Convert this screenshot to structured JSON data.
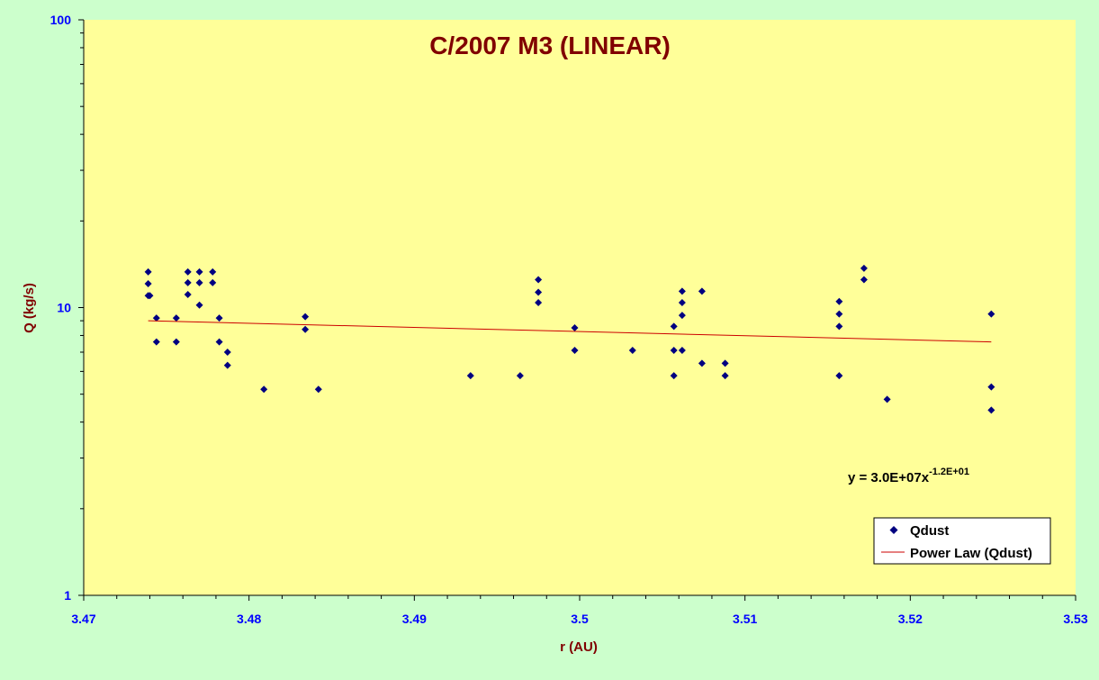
{
  "colors": {
    "page_background": "#ccffcc",
    "plot_background": "#ffff99",
    "title": "#800000",
    "axis_title": "#800000",
    "tick_label": "#0000ff",
    "marker": "#000080",
    "trendline": "#cc0000",
    "equation": "#000000"
  },
  "chart_data": {
    "type": "scatter",
    "title": "C/2007 M3 (LINEAR)",
    "xlabel": "r (AU)",
    "ylabel": "Q (kg/s)",
    "xlim": [
      3.47,
      3.53
    ],
    "ylim": [
      1,
      100
    ],
    "y_scale": "log",
    "x_tick_labels": [
      "3.47",
      "3.48",
      "3.49",
      "3.5",
      "3.51",
      "3.52",
      "3.53"
    ],
    "y_tick_labels": [
      "1",
      "10",
      "100"
    ],
    "grid": false,
    "legend": {
      "position": "bottom-right",
      "entries": [
        "Qdust",
        "Power Law (Qdust)"
      ]
    },
    "equation": {
      "base": "y = 3.0E+07x",
      "exponent": "-1.2E+01"
    },
    "series": [
      {
        "name": "Qdust",
        "marker": "diamond",
        "points": [
          [
            3.4739,
            13.3
          ],
          [
            3.4739,
            12.1
          ],
          [
            3.4739,
            11.0
          ],
          [
            3.474,
            11.0
          ],
          [
            3.4744,
            9.2
          ],
          [
            3.4744,
            7.6
          ],
          [
            3.4756,
            9.2
          ],
          [
            3.4756,
            7.6
          ],
          [
            3.4763,
            13.3
          ],
          [
            3.4763,
            12.2
          ],
          [
            3.4763,
            11.1
          ],
          [
            3.477,
            13.3
          ],
          [
            3.477,
            12.2
          ],
          [
            3.477,
            10.2
          ],
          [
            3.4778,
            13.3
          ],
          [
            3.4778,
            12.2
          ],
          [
            3.4782,
            9.2
          ],
          [
            3.4782,
            7.6
          ],
          [
            3.4787,
            7.0
          ],
          [
            3.4787,
            6.3
          ],
          [
            3.4809,
            5.2
          ],
          [
            3.4834,
            9.3
          ],
          [
            3.4834,
            8.4
          ],
          [
            3.4842,
            5.2
          ],
          [
            3.4934,
            5.8
          ],
          [
            3.4964,
            5.8
          ],
          [
            3.4975,
            12.5
          ],
          [
            3.4975,
            11.3
          ],
          [
            3.4975,
            10.4
          ],
          [
            3.4997,
            8.5
          ],
          [
            3.4997,
            7.1
          ],
          [
            3.5032,
            7.1
          ],
          [
            3.5057,
            8.6
          ],
          [
            3.5057,
            7.1
          ],
          [
            3.5057,
            5.8
          ],
          [
            3.5062,
            11.4
          ],
          [
            3.5062,
            10.4
          ],
          [
            3.5062,
            9.4
          ],
          [
            3.5062,
            7.1
          ],
          [
            3.5074,
            11.4
          ],
          [
            3.5074,
            6.4
          ],
          [
            3.5088,
            6.4
          ],
          [
            3.5088,
            5.8
          ],
          [
            3.5157,
            10.5
          ],
          [
            3.5157,
            9.5
          ],
          [
            3.5157,
            8.6
          ],
          [
            3.5157,
            5.8
          ],
          [
            3.5172,
            13.7
          ],
          [
            3.5172,
            12.5
          ],
          [
            3.5186,
            4.8
          ],
          [
            3.5249,
            9.5
          ],
          [
            3.5249,
            5.3
          ],
          [
            3.5249,
            4.4
          ]
        ]
      },
      {
        "name": "Power Law (Qdust)",
        "type": "line",
        "points": [
          [
            3.4739,
            9.0
          ],
          [
            3.5249,
            7.6
          ]
        ]
      }
    ]
  }
}
